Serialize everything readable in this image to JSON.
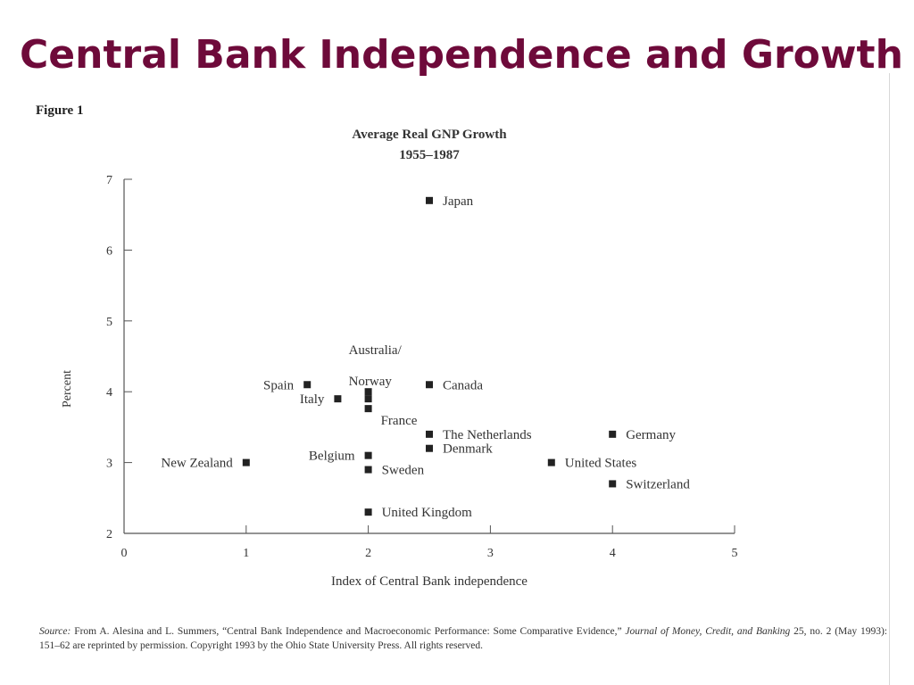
{
  "slide": {
    "title": "Central Bank Independence and Growth",
    "figure_label": "Figure 1",
    "accent_color": "#6e0a3a"
  },
  "chart_data": {
    "type": "scatter",
    "title": "Average Real GNP Growth",
    "subtitle": "1955–1987",
    "xlabel": "Index of Central Bank independence",
    "ylabel": "Percent",
    "xlim": [
      0,
      5
    ],
    "ylim": [
      2,
      7
    ],
    "xticks": [
      0,
      1,
      2,
      3,
      4,
      5
    ],
    "yticks": [
      2,
      3,
      4,
      5,
      6,
      7
    ],
    "grid": false,
    "marker": "square",
    "marker_color": "#222222",
    "points": [
      {
        "label": "Japan",
        "x": 2.5,
        "y": 6.7,
        "label_side": "right"
      },
      {
        "label": "Spain",
        "x": 1.5,
        "y": 4.1,
        "label_side": "left"
      },
      {
        "label": "Italy",
        "x": 1.75,
        "y": 3.9,
        "label_side": "left"
      },
      {
        "label": "Australia/",
        "x": 2.0,
        "y": 4.0,
        "label_side": "above"
      },
      {
        "label": "Norway",
        "x": 2.0,
        "y": 3.9,
        "label_side": "above"
      },
      {
        "label": "France",
        "x": 2.0,
        "y": 3.9,
        "label_side": "below-right"
      },
      {
        "label": "Canada",
        "x": 2.5,
        "y": 4.1,
        "label_side": "right"
      },
      {
        "label": "The Netherlands",
        "x": 2.5,
        "y": 3.4,
        "label_side": "right"
      },
      {
        "label": "Denmark",
        "x": 2.5,
        "y": 3.2,
        "label_side": "right"
      },
      {
        "label": "Germany",
        "x": 4.0,
        "y": 3.4,
        "label_side": "right"
      },
      {
        "label": "New Zealand",
        "x": 1.0,
        "y": 3.0,
        "label_side": "left"
      },
      {
        "label": "Belgium",
        "x": 2.0,
        "y": 3.1,
        "label_side": "left"
      },
      {
        "label": "Sweden",
        "x": 2.0,
        "y": 2.9,
        "label_side": "right"
      },
      {
        "label": "United States",
        "x": 3.5,
        "y": 3.0,
        "label_side": "right"
      },
      {
        "label": "Switzerland",
        "x": 4.0,
        "y": 2.7,
        "label_side": "right"
      },
      {
        "label": "United Kingdom",
        "x": 2.0,
        "y": 2.3,
        "label_side": "right"
      }
    ]
  },
  "source": {
    "prefix": "Source:",
    "part1": " From A. Alesina and L. Summers, “Central Bank Independence and Macroeconomic Performance: Some Comparative Evidence,” ",
    "journal": "Journal of Money, Credit, and Banking",
    "part2": " 25, no. 2 (May 1993): 151–62 are reprinted by permission. Copyright 1993 by the Ohio State University Press. All rights reserved."
  }
}
